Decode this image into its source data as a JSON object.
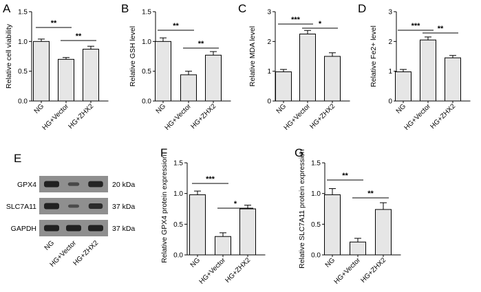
{
  "chart_data": [
    {
      "panel": "A",
      "type": "bar",
      "ylabel": "Relative cell viability",
      "categories": [
        "NG",
        "HG+Vector",
        "HG+ZHX2"
      ],
      "values": [
        1.0,
        0.7,
        0.87
      ],
      "errors": [
        0.04,
        0.03,
        0.05
      ],
      "ylim": [
        0,
        1.5
      ],
      "yticks": [
        "0.0",
        "0.5",
        "1.0",
        "1.5"
      ],
      "tickvals": [
        0,
        0.5,
        1.0,
        1.5
      ],
      "significance": [
        {
          "from": 0,
          "to": 1,
          "label": "**"
        },
        {
          "from": 1,
          "to": 2,
          "label": "**"
        }
      ]
    },
    {
      "panel": "B",
      "type": "bar",
      "ylabel": "Relative GSH level",
      "categories": [
        "NG",
        "HG+Vector",
        "HG+ZHX2"
      ],
      "values": [
        1.0,
        0.44,
        0.77
      ],
      "errors": [
        0.06,
        0.06,
        0.06
      ],
      "ylim": [
        0,
        1.5
      ],
      "yticks": [
        "0.0",
        "0.5",
        "1.0",
        "1.5"
      ],
      "tickvals": [
        0,
        0.5,
        1.0,
        1.5
      ],
      "significance": [
        {
          "from": 0,
          "to": 1,
          "label": "**"
        },
        {
          "from": 1,
          "to": 2,
          "label": "**"
        }
      ]
    },
    {
      "panel": "C",
      "type": "bar",
      "ylabel": "Relative MDA level",
      "categories": [
        "NG",
        "HG+Vector",
        "HG+ZHX2"
      ],
      "values": [
        0.98,
        2.25,
        1.5
      ],
      "errors": [
        0.08,
        0.12,
        0.12
      ],
      "ylim": [
        0,
        3
      ],
      "yticks": [
        "0",
        "1",
        "2",
        "3"
      ],
      "tickvals": [
        0,
        1,
        2,
        3
      ],
      "significance": [
        {
          "from": 0,
          "to": 1,
          "label": "***"
        },
        {
          "from": 1,
          "to": 2,
          "label": "*"
        }
      ]
    },
    {
      "panel": "D",
      "type": "bar",
      "ylabel": "Relative Fe2+ level",
      "categories": [
        "NG",
        "HG+Vector",
        "HG+ZHX2"
      ],
      "values": [
        0.98,
        2.05,
        1.45
      ],
      "errors": [
        0.08,
        0.1,
        0.08
      ],
      "ylim": [
        0,
        3
      ],
      "yticks": [
        "0",
        "1",
        "2",
        "3"
      ],
      "tickvals": [
        0,
        1,
        2,
        3
      ],
      "significance": [
        {
          "from": 0,
          "to": 1,
          "label": "***"
        },
        {
          "from": 1,
          "to": 2,
          "label": "**"
        }
      ]
    },
    {
      "panel": "F",
      "type": "bar",
      "ylabel": "Relative GPX4 protein expression",
      "categories": [
        "NG",
        "HG+Vector",
        "HG+ZHX2"
      ],
      "values": [
        0.98,
        0.3,
        0.75
      ],
      "errors": [
        0.06,
        0.06,
        0.06
      ],
      "ylim": [
        0,
        1.5
      ],
      "yticks": [
        "0.0",
        "0.5",
        "1.0",
        "1.5"
      ],
      "tickvals": [
        0,
        0.5,
        1.0,
        1.5
      ],
      "significance": [
        {
          "from": 0,
          "to": 1,
          "label": "***"
        },
        {
          "from": 1,
          "to": 2,
          "label": "*"
        }
      ]
    },
    {
      "panel": "G",
      "type": "bar",
      "ylabel": "Relative SLC7A11 protein expression",
      "categories": [
        "NG",
        "HG+Vector",
        "HG+ZHX2"
      ],
      "values": [
        0.98,
        0.21,
        0.74
      ],
      "errors": [
        0.1,
        0.06,
        0.11
      ],
      "ylim": [
        0,
        1.5
      ],
      "yticks": [
        "0.0",
        "0.5",
        "1.0",
        "1.5"
      ],
      "tickvals": [
        0,
        0.5,
        1.0,
        1.5
      ],
      "significance": [
        {
          "from": 0,
          "to": 1,
          "label": "**"
        },
        {
          "from": 1,
          "to": 2,
          "label": "**"
        }
      ]
    }
  ],
  "western_blot": {
    "panel": "E",
    "rows": [
      {
        "protein": "GPX4",
        "size": "20 kDa",
        "intensity": [
          1.0,
          0.45,
          0.95
        ]
      },
      {
        "protein": "SLC7A11",
        "size": "37 kDa",
        "intensity": [
          1.0,
          0.4,
          0.85
        ]
      },
      {
        "protein": "GAPDH",
        "size": "37 kDa",
        "intensity": [
          1.0,
          1.0,
          1.0
        ]
      }
    ],
    "lanes": [
      "NG",
      "HG+Vector",
      "HG+ZHX2"
    ]
  },
  "colors": {
    "bar_fill": "#e6e6e6",
    "stroke": "#000000",
    "blot_bg": "#8f8f8f",
    "band": "#1b1b1b"
  }
}
